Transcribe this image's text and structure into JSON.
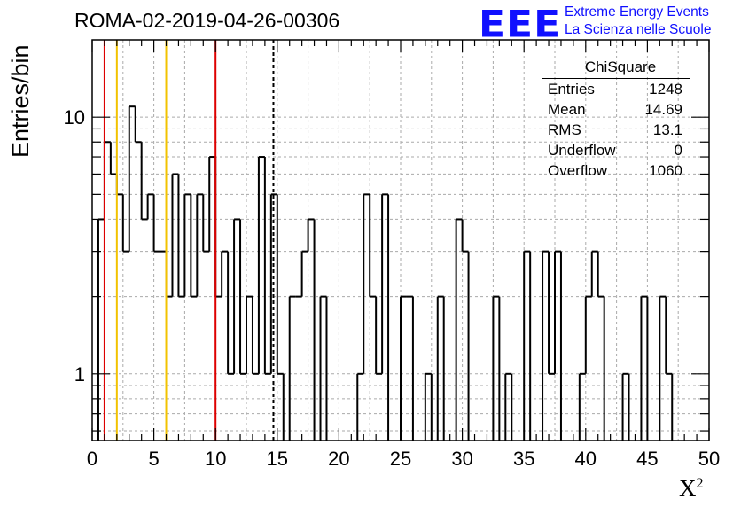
{
  "header": {
    "title": "ROMA-02-2019-04-26-00306",
    "logo_letters": "EEE",
    "logo_line1": "Extreme Energy Events",
    "logo_line2": "La Scienza nelle Scuole"
  },
  "stats_box": {
    "title": "ChiSquare",
    "rows": [
      {
        "label": "Entries",
        "value": "1248"
      },
      {
        "label": "Mean",
        "value": "14.69"
      },
      {
        "label": "RMS",
        "value": "13.1"
      },
      {
        "label": "Underflow",
        "value": "0"
      },
      {
        "label": "Overflow",
        "value": "1060"
      }
    ]
  },
  "chart_data": {
    "type": "histogram",
    "xlabel": "X",
    "xlabel_superscript": "2",
    "ylabel": "Entries/bin",
    "xlim": [
      0,
      50
    ],
    "ylim": [
      0.55,
      20
    ],
    "yscale": "log",
    "grid": true,
    "bin_width": 0.5,
    "x_ticks": [
      0,
      5,
      10,
      15,
      20,
      25,
      30,
      35,
      40,
      45,
      50
    ],
    "y_tick_labels": [
      1,
      10
    ],
    "bins": [
      [
        0.5,
        4
      ],
      [
        1.0,
        8
      ],
      [
        1.5,
        6
      ],
      [
        2.0,
        5
      ],
      [
        2.5,
        3
      ],
      [
        3.0,
        11
      ],
      [
        3.5,
        8
      ],
      [
        4.0,
        4
      ],
      [
        4.5,
        5
      ],
      [
        5.0,
        3
      ],
      [
        5.5,
        3
      ],
      [
        6.0,
        2
      ],
      [
        6.5,
        6
      ],
      [
        7.0,
        2
      ],
      [
        7.5,
        5
      ],
      [
        8.0,
        2
      ],
      [
        8.5,
        5
      ],
      [
        9.0,
        3
      ],
      [
        9.5,
        7
      ],
      [
        10.0,
        2
      ],
      [
        10.5,
        3
      ],
      [
        11.0,
        1
      ],
      [
        11.5,
        4
      ],
      [
        12.0,
        1
      ],
      [
        12.5,
        2
      ],
      [
        13.0,
        1
      ],
      [
        13.5,
        7
      ],
      [
        14.0,
        1
      ],
      [
        14.5,
        5
      ],
      [
        15.0,
        1
      ],
      [
        16.0,
        2
      ],
      [
        16.5,
        2
      ],
      [
        17.0,
        3
      ],
      [
        17.5,
        4
      ],
      [
        18.5,
        2
      ],
      [
        21.5,
        1
      ],
      [
        22.0,
        5
      ],
      [
        22.5,
        2
      ],
      [
        23.0,
        1
      ],
      [
        23.5,
        5
      ],
      [
        25.0,
        2
      ],
      [
        25.5,
        2
      ],
      [
        27.0,
        1
      ],
      [
        28.0,
        2
      ],
      [
        29.5,
        4
      ],
      [
        30.0,
        3
      ],
      [
        32.5,
        2
      ],
      [
        33.5,
        1
      ],
      [
        35.0,
        3
      ],
      [
        36.5,
        3
      ],
      [
        37.0,
        1
      ],
      [
        37.5,
        3
      ],
      [
        39.5,
        1
      ],
      [
        40.0,
        2
      ],
      [
        40.5,
        3
      ],
      [
        41.0,
        2
      ],
      [
        43.0,
        1
      ],
      [
        44.5,
        2
      ],
      [
        46.0,
        2
      ],
      [
        46.5,
        1
      ]
    ],
    "vertical_lines": [
      {
        "x": 1.0,
        "color": "#dd0000",
        "style": "solid"
      },
      {
        "x": 2.0,
        "color": "#f2c200",
        "style": "solid"
      },
      {
        "x": 6.0,
        "color": "#f2c200",
        "style": "solid"
      },
      {
        "x": 10.0,
        "color": "#dd0000",
        "style": "solid"
      },
      {
        "x": 14.69,
        "color": "#000000",
        "style": "dashed"
      }
    ]
  },
  "colors": {
    "logo": "#1010ff",
    "grid": "#aaaaaa"
  }
}
